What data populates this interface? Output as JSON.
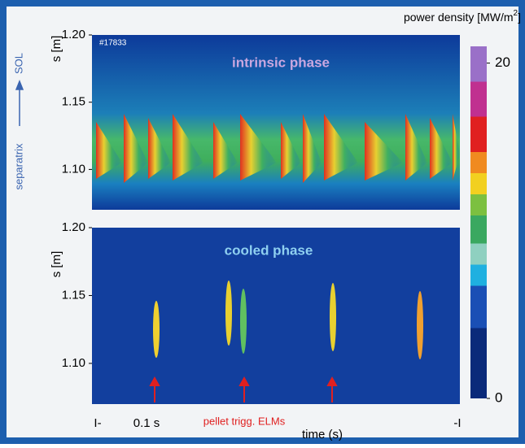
{
  "chart_data": [
    {
      "type": "heatmap",
      "title": "intrinsic phase",
      "ylabel": "s [m]",
      "ylim": [
        1.07,
        1.2
      ],
      "yticks": [
        {
          "value": 1.2,
          "label": "1.20"
        },
        {
          "value": 1.15,
          "label": "1.15"
        },
        {
          "value": 1.1,
          "label": "1.10"
        }
      ]
    },
    {
      "type": "heatmap",
      "title": "cooled phase",
      "ylabel": "s [m]",
      "ylim": [
        1.07,
        1.2
      ],
      "yticks": [
        {
          "value": 1.2,
          "label": "1.20"
        },
        {
          "value": 1.15,
          "label": "1.15"
        },
        {
          "value": 1.1,
          "label": "1.10"
        }
      ]
    },
    {
      "type": "colorbar",
      "label": "power density [MW/m",
      "label_sup": "2",
      "label_end": "]",
      "ylim": [
        0,
        21
      ],
      "yticks": [
        0,
        20
      ]
    }
  ],
  "annotations": {
    "shot": "#17833",
    "separatrix": "separatrix",
    "sol": "SOL",
    "time_mark": "0.1 s",
    "pellet": "pellet trigg. ELMs",
    "xlabel": "time (s)",
    "start": "I-",
    "end": "-I"
  }
}
